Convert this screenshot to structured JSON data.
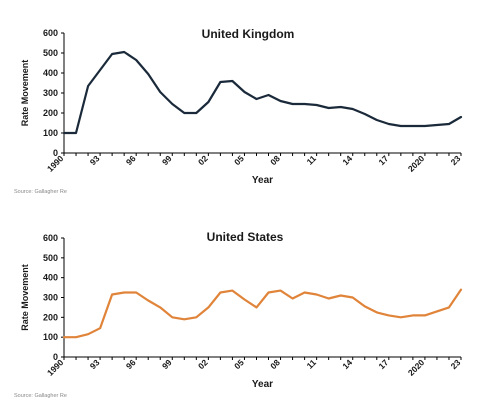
{
  "chart_data": [
    {
      "type": "line",
      "title": "United Kingdom",
      "xlabel": "Year",
      "ylabel": "Rate Movement",
      "ylim": [
        0,
        600
      ],
      "yticks": [
        0,
        100,
        200,
        300,
        400,
        500,
        600
      ],
      "x_tick_labels": [
        "1990",
        "93",
        "96",
        "99",
        "02",
        "05",
        "08",
        "11",
        "14",
        "17",
        "2020",
        "23"
      ],
      "x": [
        1990,
        1991,
        1992,
        1993,
        1994,
        1995,
        1996,
        1997,
        1998,
        1999,
        2000,
        2001,
        2002,
        2003,
        2004,
        2005,
        2006,
        2007,
        2008,
        2009,
        2010,
        2011,
        2012,
        2013,
        2014,
        2015,
        2016,
        2017,
        2018,
        2019,
        2020,
        2021,
        2022,
        2023
      ],
      "series": [
        {
          "color": "#1b2a3a",
          "values": [
            100,
            100,
            335,
            415,
            495,
            505,
            465,
            395,
            305,
            245,
            200,
            200,
            255,
            355,
            360,
            305,
            270,
            290,
            260,
            245,
            245,
            240,
            225,
            230,
            220,
            195,
            165,
            145,
            135,
            135,
            135,
            140,
            145,
            180
          ]
        }
      ],
      "source": "Source: Gallagher Re"
    },
    {
      "type": "line",
      "title": "United States",
      "xlabel": "Year",
      "ylabel": "Rate Movement",
      "ylim": [
        0,
        600
      ],
      "yticks": [
        0,
        100,
        200,
        300,
        400,
        500,
        600
      ],
      "x_tick_labels": [
        "1990",
        "93",
        "96",
        "99",
        "02",
        "05",
        "08",
        "11",
        "14",
        "17",
        "2020",
        "23"
      ],
      "x": [
        1990,
        1991,
        1992,
        1993,
        1994,
        1995,
        1996,
        1997,
        1998,
        1999,
        2000,
        2001,
        2002,
        2003,
        2004,
        2005,
        2006,
        2007,
        2008,
        2009,
        2010,
        2011,
        2012,
        2013,
        2014,
        2015,
        2016,
        2017,
        2018,
        2019,
        2020,
        2021,
        2022,
        2023
      ],
      "series": [
        {
          "color": "#e0843a",
          "values": [
            100,
            100,
            115,
            145,
            315,
            325,
            325,
            285,
            250,
            200,
            190,
            200,
            250,
            325,
            335,
            290,
            250,
            325,
            335,
            295,
            325,
            315,
            295,
            310,
            300,
            255,
            225,
            210,
            200,
            210,
            210,
            230,
            250,
            340
          ]
        }
      ],
      "source": "Source: Gallagher Re"
    }
  ]
}
